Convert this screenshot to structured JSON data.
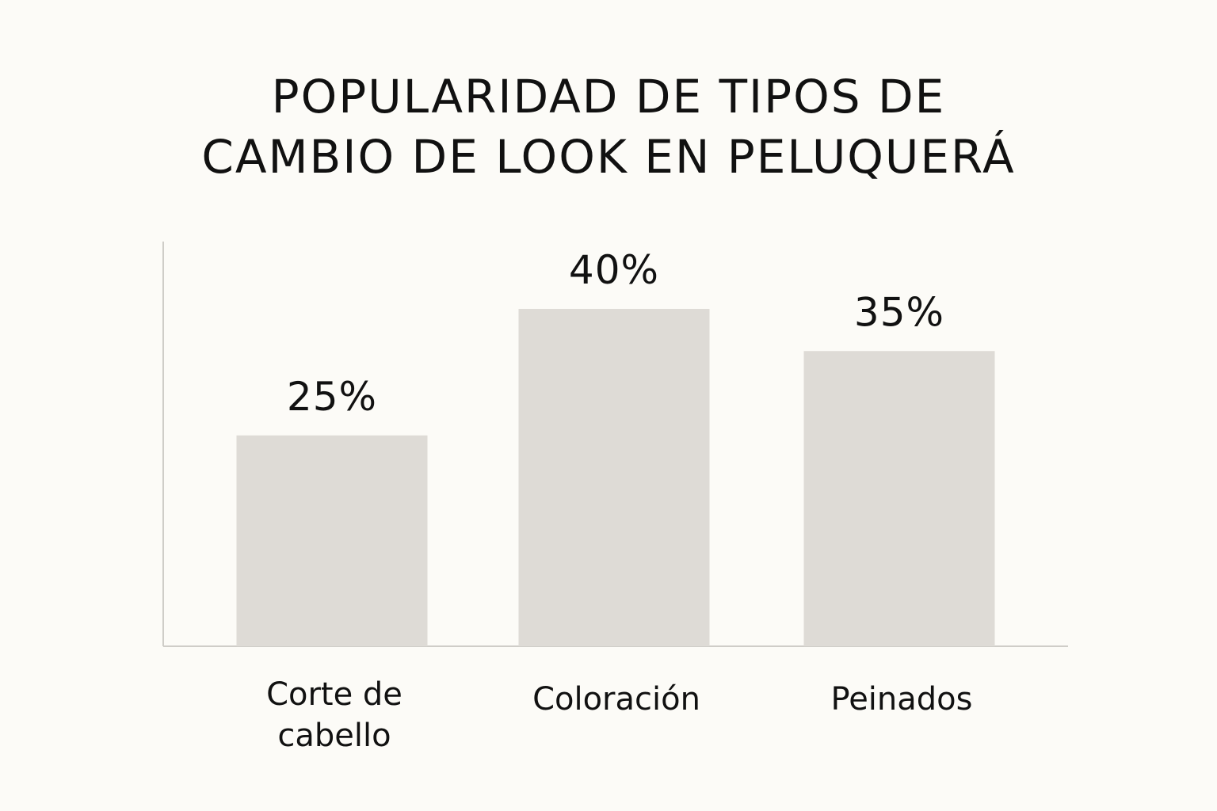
{
  "chart_data": {
    "type": "bar",
    "title_lines": [
      "POPULARIDAD DE TIPOS DE",
      "CAMBIO DE LOOK EN PELUQUERÁ"
    ],
    "categories": [
      [
        "Corte de",
        "cabello"
      ],
      [
        "Coloración"
      ],
      [
        "Peinados"
      ]
    ],
    "values": [
      25,
      40,
      35
    ],
    "value_labels": [
      "25%",
      "40%",
      "35%"
    ],
    "ylim": [
      0,
      48
    ],
    "grid": false,
    "colors": {
      "bar": "#dedbd6",
      "axis": "#cfcdc8",
      "background": "#fcfbf7",
      "text": "#111111"
    }
  }
}
